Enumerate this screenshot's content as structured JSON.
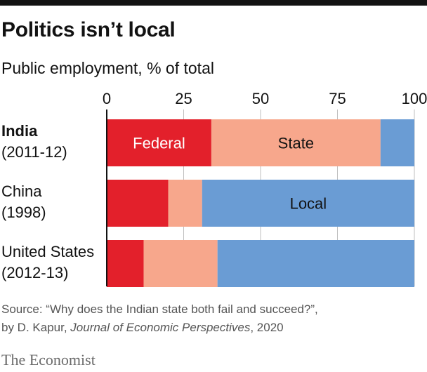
{
  "header": {
    "title": "Politics isn’t local",
    "subtitle": "Public employment, % of total"
  },
  "source": {
    "line1": "Source: “Why does the Indian state both fail and succeed?”,",
    "line2_prefix": "by D. Kapur, ",
    "line2_journal": "Journal of Economic Perspectives",
    "line2_suffix": ", 2020"
  },
  "brand": "The Economist",
  "colors": {
    "federal": "#e3202b",
    "state": "#f7a78c",
    "local": "#6a9cd4",
    "axis": "#121212",
    "grid": "#bfbfbf"
  },
  "chart_data": {
    "type": "bar",
    "orientation": "horizontal",
    "stacked": true,
    "xlim": [
      0,
      100
    ],
    "ticks": [
      "0",
      "25",
      "50",
      "75",
      "100"
    ],
    "grid": true,
    "categories": [
      {
        "label_lines": [
          "India",
          "(2011-12)"
        ],
        "bold_first_line": true
      },
      {
        "label_lines": [
          "China",
          "(1998)"
        ],
        "bold_first_line": false
      },
      {
        "label_lines": [
          "United States",
          "(2012-13)"
        ],
        "bold_first_line": false
      }
    ],
    "series": [
      {
        "key": "federal",
        "values": [
          34,
          20,
          12
        ]
      },
      {
        "key": "state",
        "values": [
          55,
          11,
          24
        ]
      },
      {
        "key": "local",
        "values": [
          11,
          69,
          64
        ]
      }
    ],
    "segment_labels": [
      {
        "text": "Federal",
        "category": 0,
        "series": 0,
        "color": "#ffffff"
      },
      {
        "text": "State",
        "category": 0,
        "series": 1,
        "color": "#121212"
      },
      {
        "text": "Local",
        "category": 1,
        "series": 2,
        "color": "#121212"
      }
    ]
  }
}
